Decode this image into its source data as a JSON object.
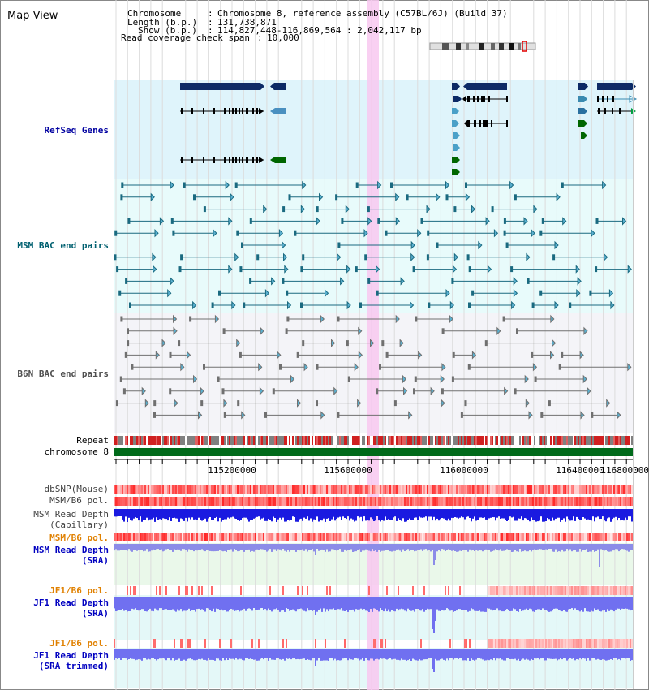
{
  "view": {
    "title": "Map View"
  },
  "info": {
    "chromosome_label": "Chromosome",
    "chromosome_value": "Chromosome 8, reference assembly (C57BL/6J) (Build 37)",
    "length_label": "Length (b.p.)",
    "length_value": "131,738,871",
    "show_label": "Show (b.p.)",
    "show_value": "114,827,448-116,869,564 : 2,042,117 bp",
    "coverage_label": "Read coverage check span",
    "coverage_value": "10,000",
    "separator": ":"
  },
  "axis": {
    "ticks": [
      "115200000",
      "115600000",
      "116000000",
      "116400000",
      "116800000"
    ]
  },
  "tracks": {
    "refseq": "RefSeq Genes",
    "msm_bac": "MSM BAC end pairs",
    "b6n_bac": "B6N BAC end pairs",
    "repeat": "Repeat",
    "chromosome": "chromosome 8",
    "dbsnp": "dbSNP(Mouse)",
    "msm_b6_pol": "MSM/B6 pol.",
    "msm_depth_cap_1": "MSM Read Depth",
    "msm_depth_cap_2": "(Capillary)",
    "msm_b6_pol_sra": "MSM/B6 pol.",
    "msm_depth_sra_1": "MSM Read Depth",
    "msm_depth_sra_2": "(SRA)",
    "jf1_b6_pol": "JF1/B6 pol.",
    "jf1_depth_sra_1": "JF1 Read Depth",
    "jf1_depth_sra_2": "(SRA)",
    "jf1_b6_pol_2": "JF1/B6 pol.",
    "jf1_depth_trim_1": "JF1 Read Depth",
    "jf1_depth_trim_2": "(SRA trimmed)"
  },
  "colors": {
    "refseq_label": "#0000a0",
    "msm_label": "#006070",
    "b6n_label": "#505050",
    "orange_label": "#e08000",
    "blue_label": "#0000c0",
    "highlight": "#f8c8f0"
  }
}
